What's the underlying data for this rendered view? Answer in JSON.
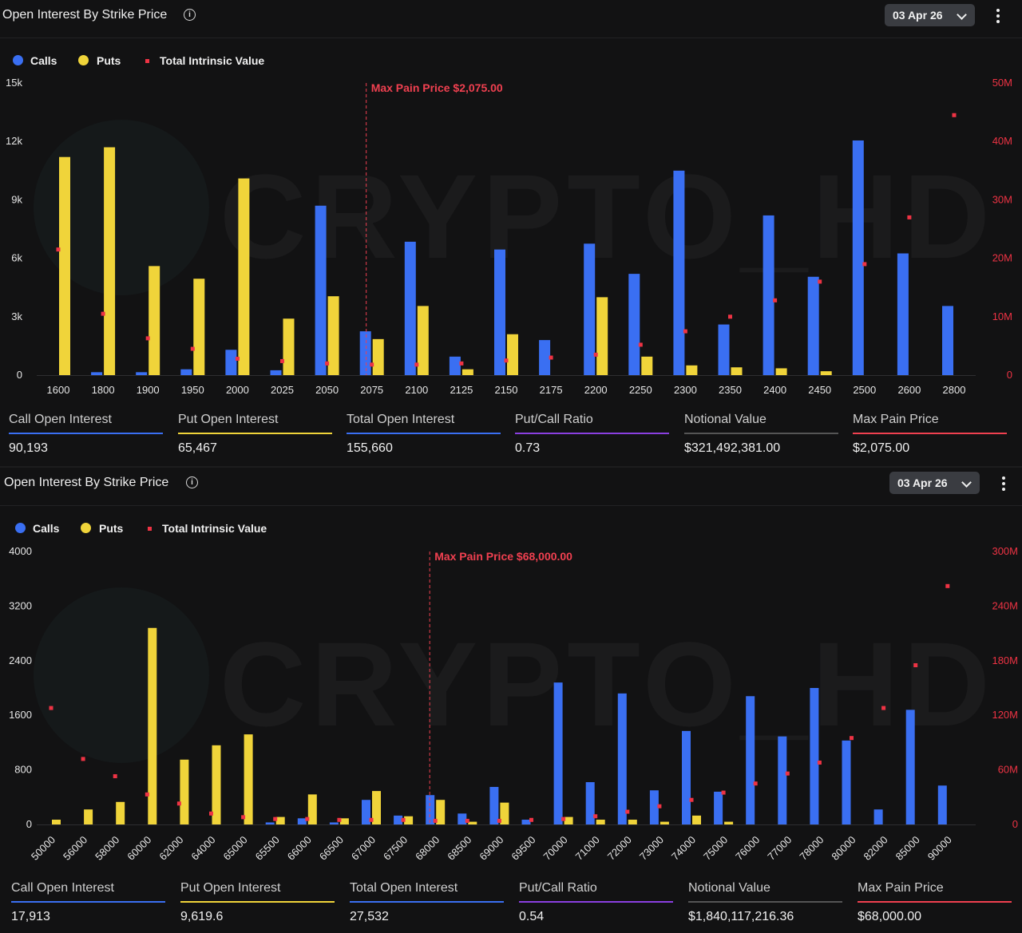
{
  "colors": {
    "calls": "#3a6ff2",
    "puts": "#f0d43a",
    "intrinsic": "#ee3344",
    "max_pain": "#f04050"
  },
  "watermark": "CRYPTO_HD",
  "panels": [
    {
      "title": "Open Interest By Strike Price",
      "date": "03 Apr 26",
      "legend": {
        "calls": "Calls",
        "puts": "Puts",
        "intrinsic": "Total Intrinsic Value"
      },
      "max_pain_label": "Max Pain Price $2,075.00",
      "stats": [
        {
          "label": "Call Open Interest",
          "value": "90,193",
          "color": "#3a6ff2"
        },
        {
          "label": "Put Open Interest",
          "value": "65,467",
          "color": "#f0d43a"
        },
        {
          "label": "Total Open Interest",
          "value": "155,660",
          "color": "#3a6ff2"
        },
        {
          "label": "Put/Call Ratio",
          "value": "0.73",
          "color": "#8a3fe0"
        },
        {
          "label": "Notional Value",
          "value": "$321,492,381.00",
          "color": "#555555"
        },
        {
          "label": "Max Pain Price",
          "value": "$2,075.00",
          "color": "#f04050"
        }
      ]
    },
    {
      "title": "Open Interest By Strike Price",
      "date": "03 Apr 26",
      "legend": {
        "calls": "Calls",
        "puts": "Puts",
        "intrinsic": "Total Intrinsic Value"
      },
      "max_pain_label": "Max Pain Price $68,000.00",
      "stats": [
        {
          "label": "Call Open Interest",
          "value": "17,913",
          "color": "#3a6ff2"
        },
        {
          "label": "Put Open Interest",
          "value": "9,619.6",
          "color": "#f0d43a"
        },
        {
          "label": "Total Open Interest",
          "value": "27,532",
          "color": "#3a6ff2"
        },
        {
          "label": "Put/Call Ratio",
          "value": "0.54",
          "color": "#8a3fe0"
        },
        {
          "label": "Notional Value",
          "value": "$1,840,117,216.36",
          "color": "#555555"
        },
        {
          "label": "Max Pain Price",
          "value": "$68,000.00",
          "color": "#f04050"
        }
      ]
    }
  ],
  "chart_data": [
    {
      "type": "bar",
      "series_types": {
        "Calls": "bar",
        "Puts": "bar",
        "Total Intrinsic Value": "scatter"
      },
      "categories": [
        "1600",
        "1800",
        "1900",
        "1950",
        "2000",
        "2025",
        "2050",
        "2075",
        "2100",
        "2125",
        "2150",
        "2175",
        "2200",
        "2250",
        "2300",
        "2350",
        "2400",
        "2450",
        "2500",
        "2600",
        "2800"
      ],
      "series": [
        {
          "name": "Calls",
          "axis": "left",
          "values": [
            0,
            150,
            150,
            300,
            1300,
            250,
            8700,
            2250,
            6850,
            950,
            6450,
            1800,
            6750,
            5200,
            10500,
            2600,
            8200,
            5050,
            12050,
            6250,
            3550
          ]
        },
        {
          "name": "Puts",
          "axis": "left",
          "values": [
            11200,
            11700,
            5600,
            4950,
            10100,
            2900,
            4050,
            1850,
            3550,
            300,
            2100,
            0,
            4000,
            950,
            500,
            400,
            350,
            200,
            0,
            0,
            0
          ]
        },
        {
          "name": "Total Intrinsic Value",
          "axis": "right",
          "values": [
            21500,
            10500,
            6300,
            4500,
            2800,
            2400,
            2000,
            1800,
            1800,
            2000,
            2500,
            3000,
            3500,
            5200,
            7500,
            10000,
            12800,
            16000,
            19000,
            27000,
            44500
          ]
        }
      ],
      "y_left": {
        "ticks": [
          "0",
          "3k",
          "6k",
          "9k",
          "12k",
          "15k"
        ],
        "ylim": [
          0,
          15000
        ]
      },
      "y_right": {
        "ticks": [
          "0",
          "10M",
          "20M",
          "30M",
          "40M",
          "50M"
        ],
        "ylim": [
          0,
          50000
        ],
        "unit": "thousands"
      },
      "max_pain_category": "2075",
      "legend_position": "top-left",
      "grid": false
    },
    {
      "type": "bar",
      "series_types": {
        "Calls": "bar",
        "Puts": "bar",
        "Total Intrinsic Value": "scatter"
      },
      "categories": [
        "50000",
        "56000",
        "58000",
        "60000",
        "62000",
        "64000",
        "65000",
        "65500",
        "66000",
        "66500",
        "67000",
        "67500",
        "68000",
        "68500",
        "69000",
        "69500",
        "70000",
        "71000",
        "72000",
        "73000",
        "74000",
        "75000",
        "76000",
        "77000",
        "78000",
        "80000",
        "82000",
        "85000",
        "90000"
      ],
      "series": [
        {
          "name": "Calls",
          "axis": "left",
          "values": [
            0,
            0,
            0,
            0,
            0,
            0,
            0,
            30,
            90,
            30,
            360,
            130,
            430,
            160,
            550,
            70,
            2080,
            620,
            1920,
            500,
            1370,
            480,
            1880,
            1290,
            2000,
            1230,
            220,
            1680,
            570
          ]
        },
        {
          "name": "Puts",
          "axis": "left",
          "values": [
            70,
            220,
            330,
            2880,
            950,
            1160,
            1320,
            110,
            440,
            90,
            490,
            120,
            360,
            40,
            320,
            0,
            110,
            70,
            70,
            40,
            130,
            40,
            0,
            0,
            0,
            0,
            0,
            0,
            0
          ]
        },
        {
          "name": "Total Intrinsic Value",
          "axis": "right",
          "values": [
            128,
            72,
            53,
            33,
            23,
            12,
            8,
            6,
            6,
            5,
            5,
            5,
            4,
            4,
            4,
            5,
            6,
            9,
            14,
            20,
            27,
            35,
            45,
            56,
            68,
            95,
            128,
            175,
            262
          ]
        }
      ],
      "y_left": {
        "ticks": [
          "0",
          "800",
          "1600",
          "2400",
          "3200",
          "4000"
        ],
        "ylim": [
          0,
          4000
        ]
      },
      "y_right": {
        "ticks": [
          "0",
          "60M",
          "120M",
          "180M",
          "240M",
          "300M"
        ],
        "ylim": [
          0,
          300
        ],
        "unit": "millions"
      },
      "max_pain_category": "68000",
      "legend_position": "top-left",
      "grid": false
    }
  ]
}
